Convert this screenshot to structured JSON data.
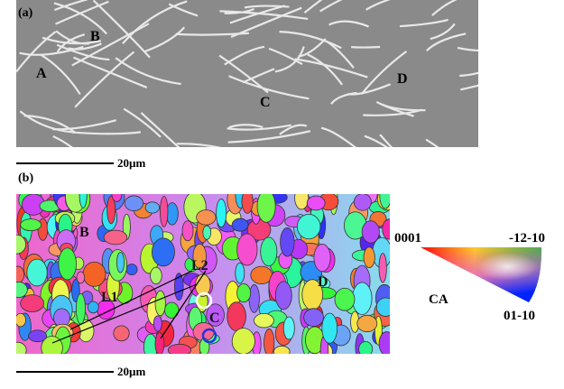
{
  "panel_a": {
    "label": "(a)",
    "markers": [
      "A",
      "B",
      "C",
      "D"
    ],
    "scale_bar": "20µm"
  },
  "panel_b": {
    "label": "(b)",
    "markers": [
      "B",
      "L1",
      "L2",
      "C",
      "D"
    ],
    "scale_bar": "20µm"
  },
  "ipf_key": {
    "corner_0001": "0001",
    "corner_1210": "-12-10",
    "corner_0110": "01-10",
    "axis": "CA",
    "colors": [
      "#ff0000",
      "#00ff00",
      "#0000ff"
    ]
  }
}
